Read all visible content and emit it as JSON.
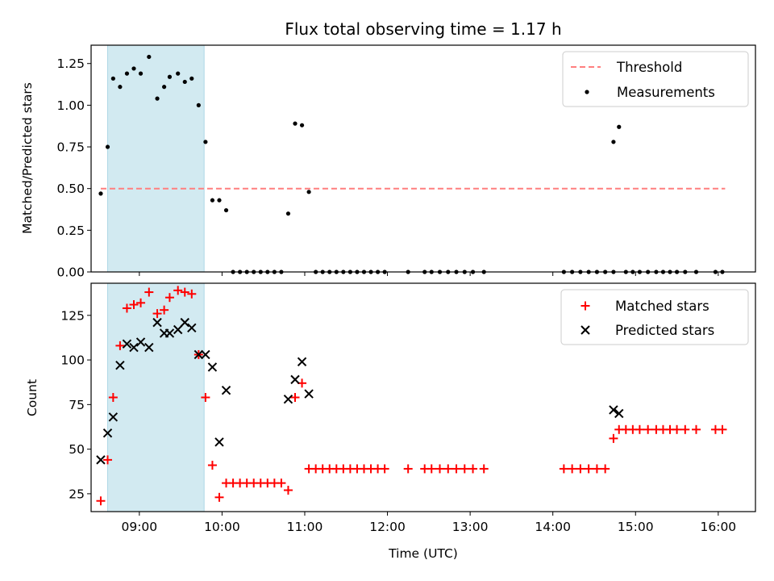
{
  "colors": {
    "shade": "#add8e6",
    "threshold": "#ff7f7f",
    "measurement": "#000000",
    "matched": "#ff0000",
    "predicted": "#000000"
  },
  "chart_data": [
    {
      "type": "scatter",
      "title": "Flux total observing time = 1.17 h",
      "xlabel": "",
      "ylabel": "Matched/Predicted stars",
      "ylim": [
        0,
        1.36
      ],
      "yticks": [
        "0.00",
        "0.25",
        "0.50",
        "0.75",
        "1.00",
        "1.25"
      ],
      "xlim": [
        "08:25",
        "16:27"
      ],
      "legend_position": "top-right",
      "shaded_span": [
        "08:37",
        "09:47"
      ],
      "threshold": {
        "name": "Threshold",
        "value": 0.5,
        "x": [
          "08:32",
          "16:05"
        ]
      },
      "series": [
        {
          "name": "Measurements",
          "points": [
            [
              "08:32",
              0.47
            ],
            [
              "08:37",
              0.75
            ],
            [
              "08:41",
              1.16
            ],
            [
              "08:46",
              1.11
            ],
            [
              "08:51",
              1.19
            ],
            [
              "08:56",
              1.22
            ],
            [
              "09:01",
              1.19
            ],
            [
              "09:07",
              1.29
            ],
            [
              "09:13",
              1.04
            ],
            [
              "09:18",
              1.11
            ],
            [
              "09:22",
              1.17
            ],
            [
              "09:28",
              1.19
            ],
            [
              "09:33",
              1.14
            ],
            [
              "09:38",
              1.16
            ],
            [
              "09:43",
              1.0
            ],
            [
              "09:48",
              0.78
            ],
            [
              "09:53",
              0.43
            ],
            [
              "09:58",
              0.43
            ],
            [
              "10:03",
              0.37
            ],
            [
              "10:08",
              0.0
            ],
            [
              "10:13",
              0.0
            ],
            [
              "10:18",
              0.0
            ],
            [
              "10:23",
              0.0
            ],
            [
              "10:28",
              0.0
            ],
            [
              "10:33",
              0.0
            ],
            [
              "10:38",
              0.0
            ],
            [
              "10:43",
              0.0
            ],
            [
              "10:48",
              0.35
            ],
            [
              "10:53",
              0.89
            ],
            [
              "10:58",
              0.88
            ],
            [
              "11:03",
              0.48
            ],
            [
              "11:08",
              0.0
            ],
            [
              "11:13",
              0.0
            ],
            [
              "11:18",
              0.0
            ],
            [
              "11:23",
              0.0
            ],
            [
              "11:28",
              0.0
            ],
            [
              "11:33",
              0.0
            ],
            [
              "11:38",
              0.0
            ],
            [
              "11:43",
              0.0
            ],
            [
              "11:48",
              0.0
            ],
            [
              "11:53",
              0.0
            ],
            [
              "11:58",
              0.0
            ],
            [
              "12:15",
              0.0
            ],
            [
              "12:27",
              0.0
            ],
            [
              "12:32",
              0.0
            ],
            [
              "12:38",
              0.0
            ],
            [
              "12:44",
              0.0
            ],
            [
              "12:50",
              0.0
            ],
            [
              "12:56",
              0.0
            ],
            [
              "13:02",
              0.0
            ],
            [
              "13:10",
              0.0
            ],
            [
              "14:08",
              0.0
            ],
            [
              "14:14",
              0.0
            ],
            [
              "14:20",
              0.0
            ],
            [
              "14:26",
              0.0
            ],
            [
              "14:32",
              0.0
            ],
            [
              "14:38",
              0.0
            ],
            [
              "14:44",
              0.0
            ],
            [
              "14:44",
              0.78
            ],
            [
              "14:48",
              0.87
            ],
            [
              "14:53",
              0.0
            ],
            [
              "14:58",
              0.0
            ],
            [
              "15:03",
              0.0
            ],
            [
              "15:09",
              0.0
            ],
            [
              "15:15",
              0.0
            ],
            [
              "15:20",
              0.0
            ],
            [
              "15:25",
              0.0
            ],
            [
              "15:30",
              0.0
            ],
            [
              "15:36",
              0.0
            ],
            [
              "15:44",
              0.0
            ],
            [
              "15:58",
              0.0
            ],
            [
              "16:03",
              0.0
            ]
          ]
        }
      ]
    },
    {
      "type": "scatter",
      "title": "",
      "xlabel": "Time (UTC)",
      "ylabel": "Count",
      "ylim": [
        15,
        143
      ],
      "yticks": [
        "25",
        "50",
        "75",
        "100",
        "125"
      ],
      "xlim": [
        "08:25",
        "16:27"
      ],
      "xticks": [
        "09:00",
        "10:00",
        "11:00",
        "12:00",
        "13:00",
        "14:00",
        "15:00",
        "16:00"
      ],
      "legend_position": "top-right",
      "shaded_span": [
        "08:37",
        "09:47"
      ],
      "series": [
        {
          "name": "Matched stars",
          "points": [
            [
              "08:32",
              21
            ],
            [
              "08:37",
              44
            ],
            [
              "08:41",
              79
            ],
            [
              "08:46",
              108
            ],
            [
              "08:51",
              129
            ],
            [
              "08:56",
              131
            ],
            [
              "09:01",
              132
            ],
            [
              "09:07",
              138
            ],
            [
              "09:13",
              126
            ],
            [
              "09:18",
              128
            ],
            [
              "09:22",
              135
            ],
            [
              "09:28",
              139
            ],
            [
              "09:33",
              138
            ],
            [
              "09:38",
              137
            ],
            [
              "09:43",
              103
            ],
            [
              "09:48",
              79
            ],
            [
              "09:53",
              41
            ],
            [
              "09:58",
              23
            ],
            [
              "10:03",
              31
            ],
            [
              "10:08",
              31
            ],
            [
              "10:13",
              31
            ],
            [
              "10:18",
              31
            ],
            [
              "10:23",
              31
            ],
            [
              "10:28",
              31
            ],
            [
              "10:33",
              31
            ],
            [
              "10:38",
              31
            ],
            [
              "10:43",
              31
            ],
            [
              "10:48",
              27
            ],
            [
              "10:53",
              79
            ],
            [
              "10:58",
              87
            ],
            [
              "11:03",
              39
            ],
            [
              "11:08",
              39
            ],
            [
              "11:13",
              39
            ],
            [
              "11:18",
              39
            ],
            [
              "11:23",
              39
            ],
            [
              "11:28",
              39
            ],
            [
              "11:33",
              39
            ],
            [
              "11:38",
              39
            ],
            [
              "11:43",
              39
            ],
            [
              "11:48",
              39
            ],
            [
              "11:53",
              39
            ],
            [
              "11:58",
              39
            ],
            [
              "12:15",
              39
            ],
            [
              "12:27",
              39
            ],
            [
              "12:32",
              39
            ],
            [
              "12:38",
              39
            ],
            [
              "12:44",
              39
            ],
            [
              "12:50",
              39
            ],
            [
              "12:56",
              39
            ],
            [
              "13:02",
              39
            ],
            [
              "13:10",
              39
            ],
            [
              "14:08",
              39
            ],
            [
              "14:14",
              39
            ],
            [
              "14:20",
              39
            ],
            [
              "14:26",
              39
            ],
            [
              "14:32",
              39
            ],
            [
              "14:38",
              39
            ],
            [
              "14:44",
              56
            ],
            [
              "14:48",
              61
            ],
            [
              "14:53",
              61
            ],
            [
              "14:58",
              61
            ],
            [
              "15:03",
              61
            ],
            [
              "15:09",
              61
            ],
            [
              "15:15",
              61
            ],
            [
              "15:20",
              61
            ],
            [
              "15:25",
              61
            ],
            [
              "15:30",
              61
            ],
            [
              "15:36",
              61
            ],
            [
              "15:44",
              61
            ],
            [
              "15:58",
              61
            ],
            [
              "16:03",
              61
            ]
          ]
        },
        {
          "name": "Predicted stars",
          "points": [
            [
              "08:32",
              44
            ],
            [
              "08:37",
              59
            ],
            [
              "08:41",
              68
            ],
            [
              "08:46",
              97
            ],
            [
              "08:51",
              109
            ],
            [
              "08:56",
              107
            ],
            [
              "09:01",
              110
            ],
            [
              "09:07",
              107
            ],
            [
              "09:13",
              121
            ],
            [
              "09:18",
              115
            ],
            [
              "09:22",
              115
            ],
            [
              "09:28",
              117
            ],
            [
              "09:33",
              121
            ],
            [
              "09:38",
              118
            ],
            [
              "09:43",
              103
            ],
            [
              "09:48",
              103
            ],
            [
              "09:53",
              96
            ],
            [
              "09:58",
              54
            ],
            [
              "10:03",
              83
            ],
            [
              "10:48",
              78
            ],
            [
              "10:53",
              89
            ],
            [
              "10:58",
              99
            ],
            [
              "11:03",
              81
            ],
            [
              "14:44",
              72
            ],
            [
              "14:48",
              70
            ]
          ]
        }
      ]
    }
  ]
}
